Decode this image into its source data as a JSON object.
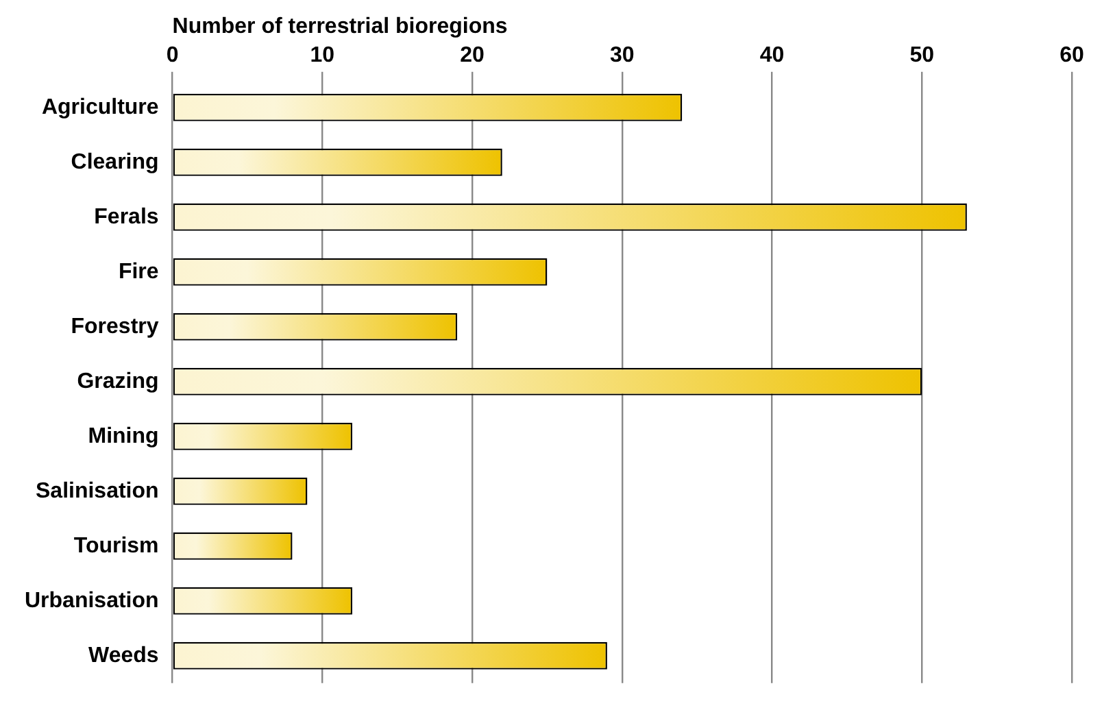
{
  "chart_data": {
    "type": "bar",
    "orientation": "horizontal",
    "xlabel": "Number of terrestrial bioregions",
    "categories": [
      "Agriculture",
      "Clearing",
      "Ferals",
      "Fire",
      "Forestry",
      "Grazing",
      "Mining",
      "Salinisation",
      "Tourism",
      "Urbanisation",
      "Weeds"
    ],
    "values": [
      34,
      22,
      53,
      25,
      19,
      50,
      12,
      9,
      8,
      12,
      29
    ],
    "color": "#eec200",
    "xlim": [
      0,
      60
    ],
    "xticks": [
      0,
      10,
      20,
      30,
      40,
      50,
      60
    ],
    "grid": "x",
    "legend": false
  }
}
